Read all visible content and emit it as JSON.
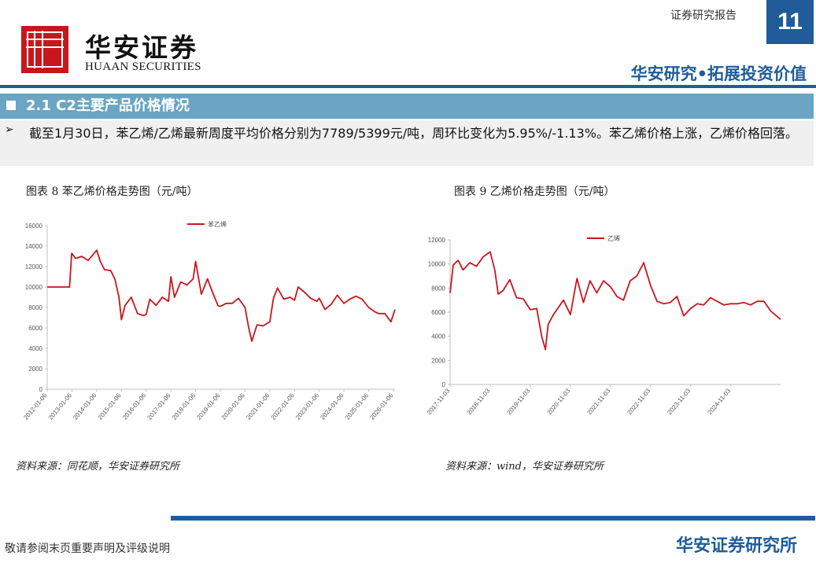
{
  "header": {
    "brand_cn": "华安证券",
    "brand_en": "HUAAN SECURITIES",
    "report_type": "证券研究报告",
    "page_number": "11",
    "slogan": "华安研究•拓展投资价值"
  },
  "section": {
    "title": "2.1 C2主要产品价格情况"
  },
  "summary": {
    "bullet": "➢",
    "text": "截至1月30日，苯乙烯/乙烯最新周度平均价格分别为7789/5399元/吨，周环比变化为5.95%/-1.13%。苯乙烯价格上涨，乙烯价格回落。"
  },
  "charts": [
    {
      "caption": "图表 8 苯乙烯价格走势图（元/吨）",
      "source": "资料来源：同花顺，华安证券研究所"
    },
    {
      "caption": "图表 9 乙烯价格走势图（元/吨）",
      "source": "资料来源：wind，华安证券研究所"
    }
  ],
  "chart_data": [
    {
      "type": "line",
      "series": [
        {
          "name": "苯乙烯",
          "color": "#c8161d",
          "x": [
            "2012-01-06",
            "2012-06-01",
            "2012-12-01",
            "2013-01-01",
            "2013-03-01",
            "2013-06-01",
            "2013-09-01",
            "2014-01-06",
            "2014-03-01",
            "2014-05-01",
            "2014-08-01",
            "2014-10-01",
            "2014-12-01",
            "2015-01-06",
            "2015-03-01",
            "2015-06-01",
            "2015-09-01",
            "2015-12-01",
            "2016-01-06",
            "2016-03-01",
            "2016-06-01",
            "2016-09-01",
            "2016-12-01",
            "2017-01-06",
            "2017-03-01",
            "2017-06-01",
            "2017-09-01",
            "2017-12-01",
            "2018-01-06",
            "2018-04-01",
            "2018-07-01",
            "2018-09-01",
            "2018-12-01",
            "2019-01-06",
            "2019-04-01",
            "2019-07-01",
            "2019-10-01",
            "2020-01-06",
            "2020-03-01",
            "2020-04-15",
            "2020-07-01",
            "2020-10-01",
            "2021-01-06",
            "2021-03-01",
            "2021-05-01",
            "2021-08-01",
            "2021-11-01",
            "2022-01-06",
            "2022-03-01",
            "2022-06-01",
            "2022-09-01",
            "2022-12-01",
            "2023-01-06",
            "2023-04-01",
            "2023-07-01",
            "2023-10-01",
            "2024-01-06",
            "2024-04-01",
            "2024-07-01",
            "2024-10-01",
            "2025-01-06",
            "2025-04-01",
            "2025-06-01",
            "2025-09-01",
            "2025-12-01",
            "2026-01-30"
          ],
          "values": [
            10000,
            10000,
            10000,
            13300,
            12800,
            13000,
            12600,
            13600,
            12500,
            11700,
            11600,
            10800,
            9000,
            6800,
            8200,
            9000,
            7400,
            7200,
            7300,
            8800,
            8200,
            9000,
            8600,
            11000,
            9000,
            10500,
            10200,
            10800,
            12500,
            9300,
            10800,
            9700,
            8200,
            8100,
            8400,
            8400,
            8900,
            8000,
            6000,
            4700,
            6300,
            6200,
            6600,
            8900,
            9900,
            8800,
            9000,
            8700,
            10000,
            9500,
            8900,
            8600,
            8900,
            7800,
            8300,
            9200,
            8400,
            8800,
            9100,
            8800,
            8000,
            7600,
            7400,
            7400,
            6600,
            7789
          ]
        }
      ],
      "x_tick_labels": [
        "2012-01-06",
        "2013-01-06",
        "2014-01-06",
        "2015-01-06",
        "2016-01-06",
        "2017-01-06",
        "2018-01-06",
        "2019-01-06",
        "2020-01-06",
        "2021-01-06",
        "2022-01-06",
        "2023-01-06",
        "2024-01-06",
        "2025-01-06",
        "2026-01-06"
      ],
      "y_ticks": [
        0,
        2000,
        4000,
        6000,
        8000,
        10000,
        12000,
        14000,
        16000
      ],
      "ylim": [
        0,
        16000
      ],
      "legend": "top-center"
    },
    {
      "type": "line",
      "series": [
        {
          "name": "乙烯",
          "color": "#c8161d",
          "x": [
            "2017-11-03",
            "2017-12-01",
            "2018-01-15",
            "2018-03-01",
            "2018-05-01",
            "2018-07-01",
            "2018-09-01",
            "2018-11-03",
            "2018-12-15",
            "2019-01-15",
            "2019-03-01",
            "2019-05-01",
            "2019-07-01",
            "2019-09-01",
            "2019-11-03",
            "2020-01-01",
            "2020-02-15",
            "2020-03-20",
            "2020-04-15",
            "2020-06-01",
            "2020-09-01",
            "2020-11-03",
            "2021-01-01",
            "2021-03-01",
            "2021-05-01",
            "2021-07-01",
            "2021-09-01",
            "2021-11-03",
            "2022-01-01",
            "2022-03-01",
            "2022-05-01",
            "2022-07-01",
            "2022-09-01",
            "2022-11-03",
            "2023-01-01",
            "2023-03-01",
            "2023-05-01",
            "2023-07-01",
            "2023-09-01",
            "2023-11-03",
            "2024-01-01",
            "2024-03-01",
            "2024-05-01",
            "2024-07-01",
            "2024-09-01",
            "2024-11-03",
            "2025-01-01",
            "2025-03-01",
            "2025-05-01",
            "2025-07-01",
            "2025-09-01",
            "2025-11-01",
            "2026-01-30"
          ],
          "values": [
            7600,
            9900,
            10300,
            9500,
            10100,
            9800,
            10600,
            11000,
            9500,
            7500,
            7800,
            8700,
            7200,
            7100,
            6200,
            6300,
            4000,
            2900,
            5000,
            5800,
            7000,
            5800,
            8800,
            6800,
            8600,
            7600,
            8600,
            8100,
            7300,
            7000,
            8600,
            9000,
            10100,
            8200,
            6900,
            6700,
            6800,
            7300,
            5700,
            6300,
            6700,
            6600,
            7200,
            6900,
            6600,
            6700,
            6700,
            6800,
            6600,
            6900,
            6900,
            6100,
            5399
          ]
        }
      ],
      "x_tick_labels": [
        "2017-11-03",
        "2018-11-03",
        "2019-11-03",
        "2020-11-03",
        "2021-11-03",
        "2022-11-03",
        "2023-11-03",
        "2024-11-03"
      ],
      "y_ticks": [
        0,
        2000,
        4000,
        6000,
        8000,
        10000,
        12000
      ],
      "ylim": [
        0,
        12000
      ],
      "legend": "top-center"
    }
  ],
  "footer": {
    "note": "敬请参阅末页重要声明及评级说明",
    "org": "华安证券研究所"
  }
}
